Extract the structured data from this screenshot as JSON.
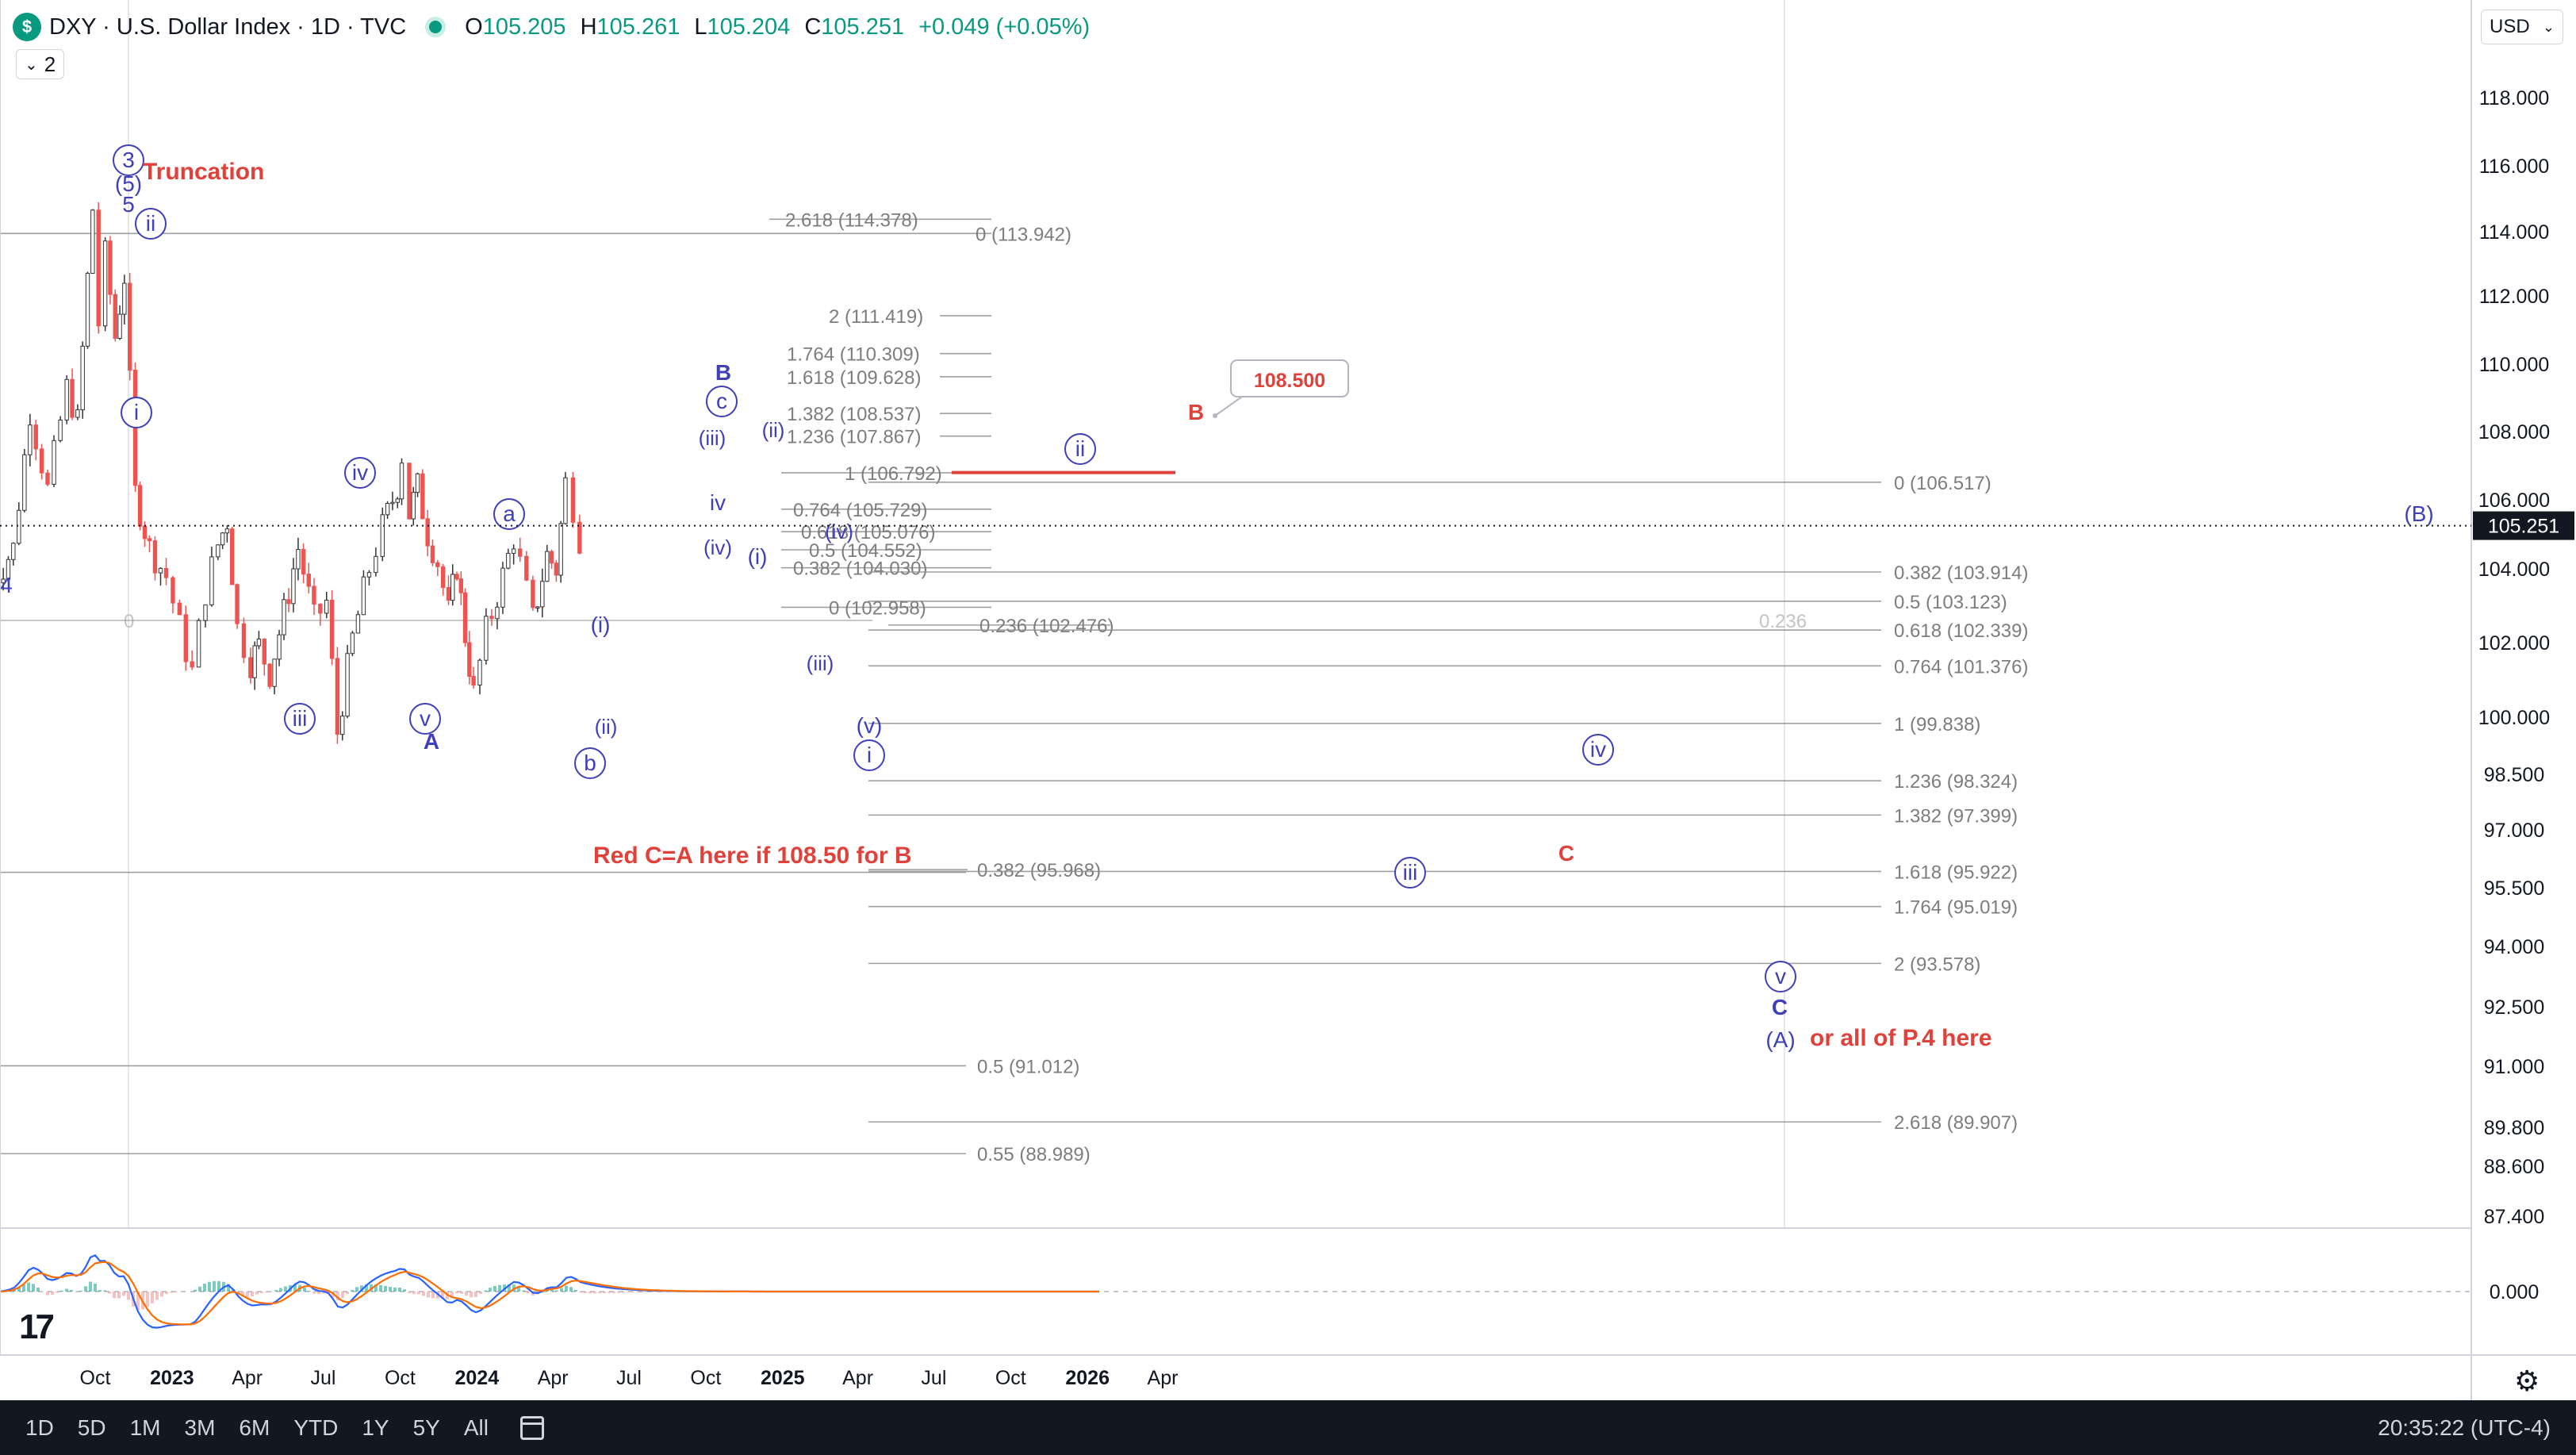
{
  "header": {
    "symbol_badge": "$",
    "title": "DXY · U.S. Dollar Index · 1D · TVC",
    "ohlc": {
      "o_label": "O",
      "o": "105.205",
      "h_label": "H",
      "h": "105.261",
      "l_label": "L",
      "l": "105.204",
      "c_label": "C",
      "c": "105.251",
      "change": "+0.049 (+0.05%)"
    },
    "indicator_count": "2",
    "currency": "USD"
  },
  "colors": {
    "blue_label": "#3f3fb8",
    "red_label": "#e0413a",
    "fib_line": "#8f8f8f",
    "candle_up": "#333333",
    "candle_down": "#ef5350",
    "macd": "#2962ff",
    "signal": "#ff6d00",
    "price_tag": "#131722"
  },
  "chart_data": {
    "type": "candlestick",
    "y_axis": {
      "ticks": [
        "118.000",
        "116.000",
        "114.000",
        "112.000",
        "110.000",
        "108.000",
        "106.000",
        "104.000",
        "102.000",
        "100.000",
        "98.500",
        "97.000",
        "95.500",
        "94.000",
        "92.500",
        "91.000",
        "89.800",
        "88.600",
        "87.400"
      ],
      "tick_values": [
        118,
        116,
        114,
        112,
        110,
        108,
        106,
        104,
        102,
        100,
        98.5,
        97,
        95.5,
        94,
        92.5,
        91,
        89.8,
        88.6,
        87.4
      ],
      "current_price": "105.251"
    },
    "x_axis": {
      "ticks": [
        "Oct",
        "2023",
        "Apr",
        "Jul",
        "Oct",
        "2024",
        "Apr",
        "Jul",
        "Oct",
        "2025",
        "Apr",
        "Jul",
        "Oct",
        "2026",
        "Apr"
      ],
      "bold": [
        "2023",
        "2024",
        "2025",
        "2026"
      ]
    },
    "price_path": [
      [
        "2022-06-01",
        103.6
      ],
      [
        "2022-06-25",
        104.6
      ],
      [
        "2022-07-15",
        108.6
      ],
      [
        "2022-08-05",
        106.3
      ],
      [
        "2022-08-28",
        109.3
      ],
      [
        "2022-09-10",
        108.3
      ],
      [
        "2022-09-28",
        114.7
      ],
      [
        "2022-10-05",
        111.2
      ],
      [
        "2022-10-13",
        113.3
      ],
      [
        "2022-10-25",
        110.8
      ],
      [
        "2022-11-05",
        112.6
      ],
      [
        "2022-11-18",
        106.2
      ],
      [
        "2022-12-05",
        104.6
      ],
      [
        "2022-12-25",
        103.8
      ],
      [
        "2023-01-10",
        102.4
      ],
      [
        "2023-01-25",
        101.2
      ],
      [
        "2023-02-10",
        103.4
      ],
      [
        "2023-02-25",
        104.7
      ],
      [
        "2023-03-08",
        105.4
      ],
      [
        "2023-03-20",
        102.4
      ],
      [
        "2023-04-05",
        101.5
      ],
      [
        "2023-04-15",
        101.9
      ],
      [
        "2023-04-28",
        101.2
      ],
      [
        "2023-05-15",
        102.8
      ],
      [
        "2023-06-01",
        104.6
      ],
      [
        "2023-06-20",
        102.6
      ],
      [
        "2023-07-05",
        103.1
      ],
      [
        "2023-07-18",
        99.6
      ],
      [
        "2023-08-05",
        102.1
      ],
      [
        "2023-08-25",
        104.0
      ],
      [
        "2023-09-10",
        105.2
      ],
      [
        "2023-09-28",
        106.4
      ],
      [
        "2023-10-03",
        107.3
      ],
      [
        "2023-10-12",
        105.6
      ],
      [
        "2023-10-22",
        106.4
      ],
      [
        "2023-11-03",
        105.0
      ],
      [
        "2023-11-15",
        104.2
      ],
      [
        "2023-11-28",
        102.8
      ],
      [
        "2023-12-08",
        104.1
      ],
      [
        "2023-12-18",
        102.2
      ],
      [
        "2023-12-28",
        100.6
      ],
      [
        "2024-01-12",
        102.3
      ],
      [
        "2024-02-01",
        103.8
      ],
      [
        "2024-02-14",
        104.9
      ],
      [
        "2024-03-08",
        102.6
      ],
      [
        "2024-03-25",
        104.4
      ],
      [
        "2024-04-05",
        104.0
      ],
      [
        "2024-04-16",
        106.5
      ],
      [
        "2024-04-25",
        105.8
      ],
      [
        "2024-05-03",
        104.9
      ],
      [
        "2024-05-08",
        105.3
      ]
    ],
    "fib_labels": [
      {
        "label": "2.618 (114.378)",
        "value": 114.378
      },
      {
        "label": "0 (113.942)",
        "value": 113.942
      },
      {
        "label": "2 (111.419)",
        "value": 111.419
      },
      {
        "label": "1.764 (110.309)",
        "value": 110.309
      },
      {
        "label": "1.618 (109.628)",
        "value": 109.628
      },
      {
        "label": "1.382 (108.537)",
        "value": 108.537
      },
      {
        "label": "1.236 (107.867)",
        "value": 107.867
      },
      {
        "label": "1 (106.792)",
        "value": 106.792
      },
      {
        "label": "0.764 (105.729)",
        "value": 105.729
      },
      {
        "label": "0.618 (105.076)",
        "value": 105.076
      },
      {
        "label": "0.5 (104.552)",
        "value": 104.552
      },
      {
        "label": "0.382 (104.030)",
        "value": 104.03
      },
      {
        "label": "0 (102.958)",
        "value": 102.958
      },
      {
        "label": "0.236 (102.476)",
        "value": 102.476
      },
      {
        "label": "0 (106.517)",
        "value": 106.517
      },
      {
        "label": "0.382 (103.914)",
        "value": 103.914
      },
      {
        "label": "0.5 (103.123)",
        "value": 103.123
      },
      {
        "label": "0.618 (102.339)",
        "value": 102.339
      },
      {
        "label": "0.764 (101.376)",
        "value": 101.376
      },
      {
        "label": "1 (99.838)",
        "value": 99.838
      },
      {
        "label": "1.236 (98.324)",
        "value": 98.324
      },
      {
        "label": "1.382 (97.399)",
        "value": 97.399
      },
      {
        "label": "0.382 (95.968)",
        "value": 95.968
      },
      {
        "label": "1.618 (95.922)",
        "value": 95.922
      },
      {
        "label": "1.764 (95.019)",
        "value": 95.019
      },
      {
        "label": "2 (93.578)",
        "value": 93.578
      },
      {
        "label": "0.5 (91.012)",
        "value": 91.012
      },
      {
        "label": "2.618 (89.907)",
        "value": 89.907
      },
      {
        "label": "0.55 (88.989)",
        "value": 88.989
      },
      {
        "label": "0.236",
        "value": 102.6
      },
      {
        "label": "0",
        "value": 102.6
      }
    ],
    "wave_labels": [
      {
        "text": "3",
        "circled": true,
        "color": "blue"
      },
      {
        "text": "(5)",
        "circled": false,
        "color": "blue"
      },
      {
        "text": "5",
        "circled": false,
        "color": "blue"
      },
      {
        "text": "ii",
        "circled": true,
        "color": "blue"
      },
      {
        "text": "i",
        "circled": true,
        "color": "blue"
      },
      {
        "text": "iii",
        "circled": true,
        "color": "blue"
      },
      {
        "text": "iv",
        "circled": true,
        "color": "blue"
      },
      {
        "text": "v",
        "circled": true,
        "color": "blue"
      },
      {
        "text": "A",
        "circled": false,
        "color": "blue"
      },
      {
        "text": "a",
        "circled": true,
        "color": "blue"
      },
      {
        "text": "b",
        "circled": true,
        "color": "blue"
      },
      {
        "text": "(i)",
        "circled": false,
        "color": "blue"
      },
      {
        "text": "(ii)",
        "circled": false,
        "color": "blue"
      },
      {
        "text": "B",
        "circled": false,
        "color": "blue"
      },
      {
        "text": "c",
        "circled": true,
        "color": "blue"
      },
      {
        "text": "(iii)",
        "circled": false,
        "color": "blue"
      },
      {
        "text": "(ii)",
        "circled": false,
        "color": "blue"
      },
      {
        "text": "iv",
        "circled": false,
        "color": "blue"
      },
      {
        "text": "(iv)",
        "circled": false,
        "color": "blue"
      },
      {
        "text": "(i)",
        "circled": false,
        "color": "blue"
      },
      {
        "text": "(iv)",
        "circled": false,
        "color": "blue"
      },
      {
        "text": "(iii)",
        "circled": false,
        "color": "blue"
      },
      {
        "text": "(v)",
        "circled": false,
        "color": "blue"
      },
      {
        "text": "i",
        "circled": true,
        "color": "blue"
      },
      {
        "text": "ii",
        "circled": true,
        "color": "blue"
      },
      {
        "text": "iii",
        "circled": true,
        "color": "blue"
      },
      {
        "text": "iv",
        "circled": true,
        "color": "blue"
      },
      {
        "text": "v",
        "circled": true,
        "color": "blue"
      },
      {
        "text": "C",
        "circled": false,
        "color": "blue"
      },
      {
        "text": "(A)",
        "circled": false,
        "color": "blue"
      },
      {
        "text": "(B)",
        "circled": false,
        "color": "blue"
      },
      {
        "text": "4",
        "circled": false,
        "color": "blue"
      },
      {
        "text": "B",
        "circled": false,
        "color": "red"
      },
      {
        "text": "C",
        "circled": false,
        "color": "red"
      }
    ],
    "annotations": [
      {
        "text": "Truncation",
        "color": "red"
      },
      {
        "text": "Red C=A here if 108.50 for B",
        "color": "red"
      },
      {
        "text": "or all of P.4 here",
        "color": "red"
      },
      {
        "text": "108.500",
        "color": "red",
        "type": "callout"
      }
    ],
    "red_level": 106.8,
    "oscillator": {
      "zero_label": "0.000"
    }
  },
  "bottom_bar": {
    "ranges": [
      "1D",
      "5D",
      "1M",
      "3M",
      "6M",
      "YTD",
      "1Y",
      "5Y",
      "All"
    ],
    "clock": "20:35:22 (UTC-4)"
  }
}
